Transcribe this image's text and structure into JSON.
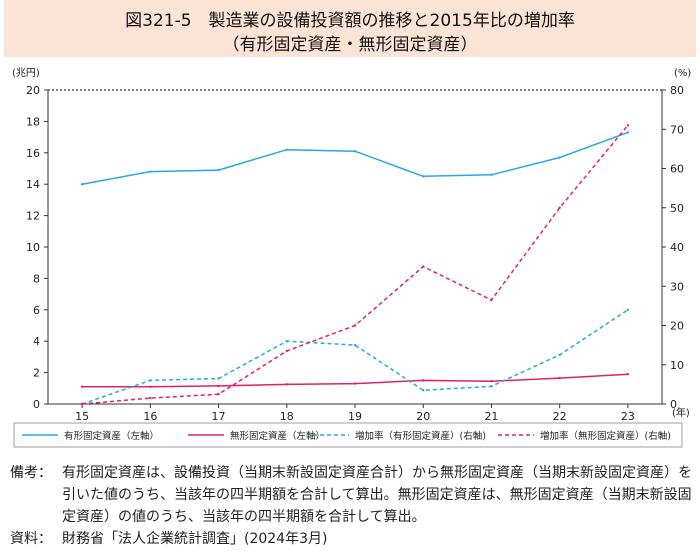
{
  "title": {
    "line1": "図321-5　製造業の設備投資額の推移と2015年比の増加率",
    "line2": "（有形固定資産・無形固定資産）"
  },
  "chart_data": {
    "type": "line",
    "x": [
      "15",
      "16",
      "17",
      "18",
      "19",
      "20",
      "21",
      "22",
      "23"
    ],
    "x_unit": "(年)",
    "left_unit": "(兆円)",
    "right_unit": "(%)",
    "left_ticks": [
      "0",
      "2",
      "4",
      "6",
      "8",
      "10",
      "12",
      "14",
      "16",
      "18",
      "20"
    ],
    "right_ticks": [
      "0",
      "10",
      "20",
      "30",
      "40",
      "50",
      "60",
      "70",
      "80"
    ],
    "left_ylim": [
      0,
      20
    ],
    "right_ylim": [
      0,
      80
    ],
    "series": [
      {
        "name": "有形固定資産（左軸）",
        "axis": "left",
        "dash": false,
        "color": "#29a8e0",
        "values": [
          14.0,
          14.8,
          14.9,
          16.2,
          16.1,
          14.5,
          14.6,
          15.7,
          17.3
        ]
      },
      {
        "name": "無形固定資産（左軸）",
        "axis": "left",
        "dash": false,
        "color": "#e0206a",
        "values": [
          1.1,
          1.1,
          1.15,
          1.25,
          1.3,
          1.5,
          1.45,
          1.65,
          1.9
        ]
      },
      {
        "name": "増加率（有形固定資産）(右軸)",
        "axis": "right",
        "dash": true,
        "color": "#29a8e0",
        "values": [
          0,
          6.0,
          6.5,
          16.0,
          15.0,
          3.5,
          4.5,
          12.5,
          24.0
        ]
      },
      {
        "name": "増加率（無形固定資産）(右軸)",
        "axis": "right",
        "dash": true,
        "color": "#e0206a",
        "values": [
          0,
          1.5,
          2.5,
          13.5,
          20.0,
          35.0,
          26.5,
          50.0,
          71.0
        ]
      }
    ]
  },
  "notes": {
    "remark_label": "備考：",
    "remark_text": "有形固定資産は、設備投資（当期末新設固定資産合計）から無形固定資産（当期末新設固定資産）を引いた値のうち、当該年の四半期額を合計して算出。無形固定資産は、無形固定資産（当期末新設固定資産）の値のうち、当該年の四半期額を合計して算出。",
    "source_label": "資料：",
    "source_text": "財務省「法人企業統計調査」(2024年3月)"
  }
}
